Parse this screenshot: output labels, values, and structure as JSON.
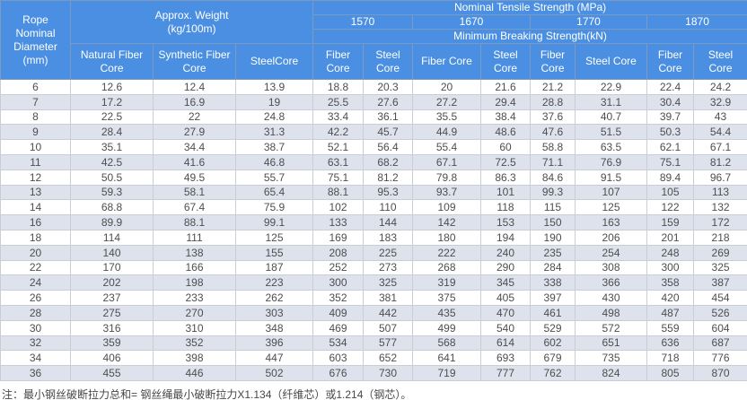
{
  "colors": {
    "header_bg": "#4B8FE2",
    "header_text": "#FFFFFF",
    "alt_row_bg": "#DDE2EC",
    "data_text": "#4E4E4E"
  },
  "table": {
    "headers": {
      "diameter": "Rope\nNominal\nDiameter\n(mm)",
      "weight": "Approx. Weight\n(kg/100m)",
      "tensile": "Nominal Tensile Strength  (MPa)",
      "breaking": "Minimum Breaking Strength(kN)"
    },
    "grades": [
      "1570",
      "1670",
      "1770",
      "1870"
    ],
    "weight_subheaders": [
      "Natural Fiber\nCore",
      "Synthetic Fiber\nCore",
      "SteelCore"
    ],
    "core_subheaders": [
      "Fiber\nCore",
      "Steel\nCore",
      "Fiber Core",
      "Steel\nCore",
      "Fiber\nCore",
      "Steel Core",
      "Fiber\nCore",
      "Steel\nCore"
    ],
    "rows": [
      {
        "d": "6",
        "values": [
          "12.6",
          "12.4",
          "13.9",
          "18.8",
          "20.3",
          "20",
          "21.6",
          "21.2",
          "22.9",
          "22.4",
          "24.2"
        ]
      },
      {
        "d": "7",
        "values": [
          "17.2",
          "16.9",
          "19",
          "25.5",
          "27.6",
          "27.2",
          "29.4",
          "28.8",
          "31.1",
          "30.4",
          "32.9"
        ]
      },
      {
        "d": "8",
        "values": [
          "22.5",
          "22",
          "24.8",
          "33.4",
          "36.1",
          "35.5",
          "38.4",
          "37.6",
          "40.7",
          "39.7",
          "43"
        ]
      },
      {
        "d": "9",
        "values": [
          "28.4",
          "27.9",
          "31.3",
          "42.2",
          "45.7",
          "44.9",
          "48.6",
          "47.6",
          "51.5",
          "50.3",
          "54.4"
        ]
      },
      {
        "d": "10",
        "values": [
          "35.1",
          "34.4",
          "38.7",
          "52.1",
          "56.4",
          "55.4",
          "60",
          "58.8",
          "63.5",
          "62.1",
          "67.1"
        ]
      },
      {
        "d": "11",
        "values": [
          "42.5",
          "41.6",
          "46.8",
          "63.1",
          "68.2",
          "67.1",
          "72.5",
          "71.1",
          "76.9",
          "75.1",
          "81.2"
        ]
      },
      {
        "d": "12",
        "values": [
          "50.5",
          "49.5",
          "55.7",
          "75.1",
          "81.2",
          "79.8",
          "86.3",
          "84.6",
          "91.5",
          "89.4",
          "96.7"
        ]
      },
      {
        "d": "13",
        "values": [
          "59.3",
          "58.1",
          "65.4",
          "88.1",
          "95.3",
          "93.7",
          "101",
          "99.3",
          "107",
          "105",
          "113"
        ]
      },
      {
        "d": "14",
        "values": [
          "68.8",
          "67.4",
          "75.9",
          "102",
          "110",
          "109",
          "118",
          "115",
          "125",
          "122",
          "132"
        ]
      },
      {
        "d": "16",
        "values": [
          "89.9",
          "88.1",
          "99.1",
          "133",
          "144",
          "142",
          "153",
          "150",
          "163",
          "159",
          "172"
        ]
      },
      {
        "d": "18",
        "values": [
          "114",
          "111",
          "125",
          "169",
          "183",
          "180",
          "194",
          "190",
          "206",
          "201",
          "218"
        ]
      },
      {
        "d": "20",
        "values": [
          "140",
          "138",
          "155",
          "208",
          "225",
          "222",
          "240",
          "235",
          "254",
          "248",
          "269"
        ]
      },
      {
        "d": "22",
        "values": [
          "170",
          "166",
          "187",
          "252",
          "273",
          "268",
          "290",
          "284",
          "308",
          "300",
          "325"
        ]
      },
      {
        "d": "24",
        "values": [
          "202",
          "198",
          "223",
          "300",
          "325",
          "319",
          "345",
          "338",
          "366",
          "358",
          "387"
        ]
      },
      {
        "d": "26",
        "values": [
          "237",
          "233",
          "262",
          "352",
          "381",
          "375",
          "405",
          "397",
          "430",
          "420",
          "454"
        ]
      },
      {
        "d": "28",
        "values": [
          "275",
          "270",
          "303",
          "409",
          "442",
          "435",
          "470",
          "461",
          "498",
          "487",
          "526"
        ]
      },
      {
        "d": "30",
        "values": [
          "316",
          "310",
          "348",
          "469",
          "507",
          "499",
          "540",
          "529",
          "572",
          "559",
          "604"
        ]
      },
      {
        "d": "32",
        "values": [
          "359",
          "352",
          "396",
          "534",
          "577",
          "568",
          "614",
          "602",
          "651",
          "636",
          "687"
        ]
      },
      {
        "d": "34",
        "values": [
          "406",
          "398",
          "447",
          "603",
          "652",
          "641",
          "693",
          "679",
          "735",
          "718",
          "776"
        ]
      },
      {
        "d": "36",
        "values": [
          "455",
          "446",
          "502",
          "676",
          "730",
          "719",
          "777",
          "762",
          "824",
          "805",
          "870"
        ]
      }
    ]
  },
  "footnote": "注：最小钢丝破断拉力总和= 钢丝绳最小破断拉力X1.134（纤维芯）或1.214（钢芯）。"
}
